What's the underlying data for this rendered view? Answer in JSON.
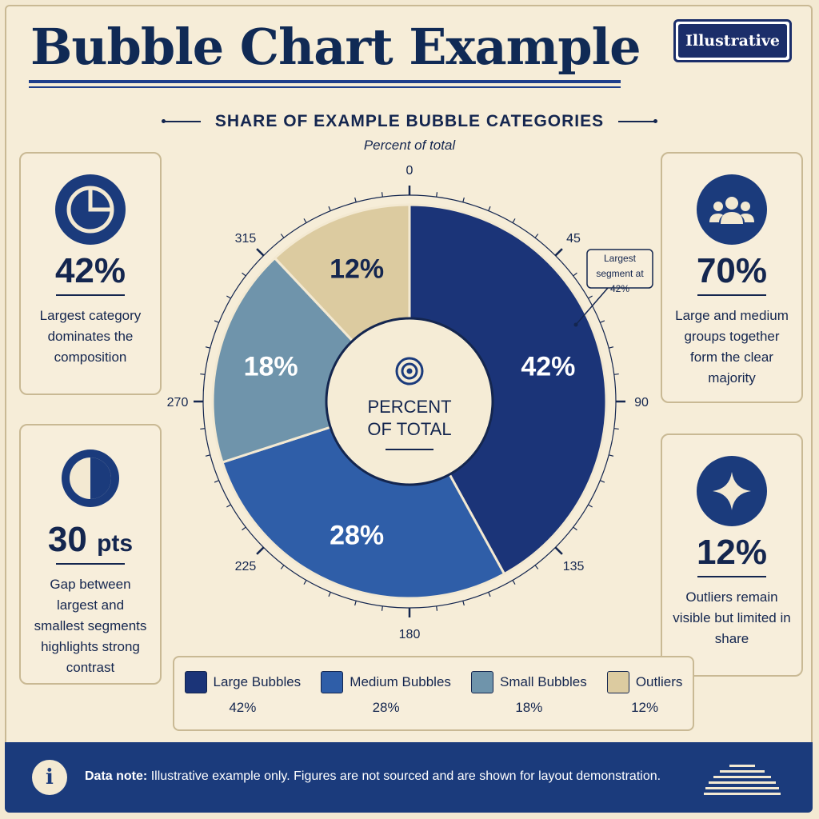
{
  "header": {
    "title": "Bubble Chart Example",
    "badge": "Illustrative"
  },
  "chart_data": {
    "type": "pie",
    "title": "SHARE OF EXAMPLE BUBBLE CATEGORIES",
    "subtitle": "Percent of total",
    "center_label_line1": "PERCENT",
    "center_label_line2": "OF TOTAL",
    "categories": [
      "Large Bubbles",
      "Medium Bubbles",
      "Small Bubbles",
      "Outliers"
    ],
    "values": [
      42,
      28,
      18,
      12
    ],
    "value_labels": [
      "42%",
      "28%",
      "18%",
      "12%"
    ],
    "colors": [
      "#1b3478",
      "#2f5ea8",
      "#6f94ab",
      "#dccba0"
    ],
    "angle_ticks": [
      "0",
      "45",
      "90",
      "135",
      "180",
      "225",
      "270",
      "315"
    ],
    "annotation": "Largest segment at 42%",
    "legend_position": "bottom"
  },
  "cards": {
    "left_top": {
      "icon": "pie-slice-icon",
      "stat": "42%",
      "desc": "Largest category dominates the composition"
    },
    "left_bottom": {
      "icon": "half-circle-icon",
      "stat_num": "30",
      "stat_unit": "pts",
      "desc": "Gap between largest and smallest segments highlights strong contrast"
    },
    "right_top": {
      "icon": "people-group-icon",
      "stat": "70%",
      "desc": "Large and medium groups together form the clear majority"
    },
    "right_bottom": {
      "icon": "star-sparkle-icon",
      "stat": "12%",
      "desc": "Outliers remain visible but limited in share"
    }
  },
  "legend": [
    {
      "label": "Large Bubbles",
      "value": "42%"
    },
    {
      "label": "Medium Bubbles",
      "value": "28%"
    },
    {
      "label": "Small Bubbles",
      "value": "18%"
    },
    {
      "label": "Outliers",
      "value": "12%"
    }
  ],
  "footer": {
    "note_label": "Data note:",
    "note_text": "Illustrative example only. Figures are not sourced and are shown for layout demonstration.",
    "info_glyph": "i"
  }
}
